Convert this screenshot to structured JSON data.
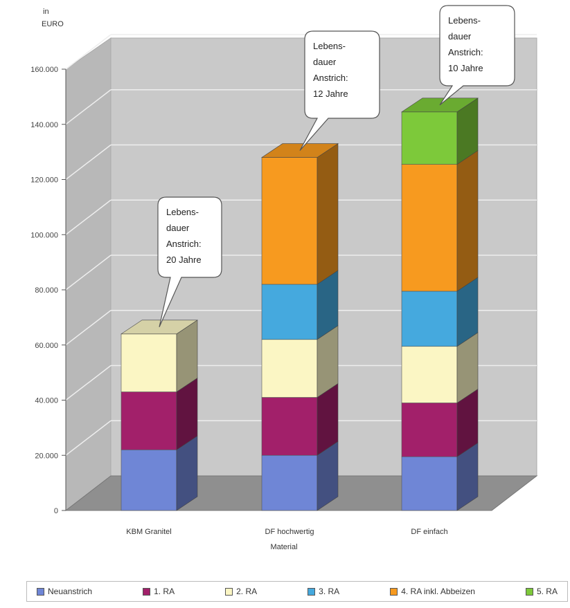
{
  "chart_data": {
    "type": "bar",
    "stacked": true,
    "three_d": true,
    "ylabel_line1": "in",
    "ylabel_line2": "EURO",
    "xlabel": "Material",
    "ylim": [
      0,
      160000
    ],
    "yticks": [
      0,
      20000,
      40000,
      60000,
      80000,
      100000,
      120000,
      140000,
      160000
    ],
    "ytick_labels": [
      "0",
      "20.000",
      "40.000",
      "60.000",
      "80.000",
      "100.000",
      "120.000",
      "140.000",
      "160.000"
    ],
    "categories": [
      "KBM Granitel",
      "DF hochwertig",
      "DF einfach"
    ],
    "series": [
      {
        "name": "Neuanstrich",
        "color": "#6f86d6",
        "values": [
          22000,
          20000,
          19500
        ]
      },
      {
        "name": "1. RA",
        "color": "#a2206a",
        "values": [
          21000,
          21000,
          19500
        ]
      },
      {
        "name": "2. RA",
        "color": "#fbf6c4",
        "values": [
          21000,
          21000,
          20500
        ]
      },
      {
        "name": "3. RA",
        "color": "#45a9de",
        "values": [
          0,
          20000,
          20000
        ]
      },
      {
        "name": "4. RA inkl. Abbeizen",
        "color": "#f79a1f",
        "values": [
          0,
          46000,
          46000
        ]
      },
      {
        "name": "5. RA",
        "color": "#7dc93a",
        "values": [
          0,
          0,
          19000
        ]
      }
    ],
    "callouts": [
      {
        "category_index": 0,
        "lines": [
          "Lebens-",
          "dauer",
          "Anstrich:",
          "20 Jahre"
        ]
      },
      {
        "category_index": 1,
        "lines": [
          "Lebens-",
          "dauer",
          "Anstrich:",
          "12 Jahre"
        ]
      },
      {
        "category_index": 2,
        "lines": [
          "Lebens-",
          "dauer",
          "Anstrich:",
          "10 Jahre"
        ]
      }
    ],
    "grid": true,
    "legend_position": "bottom"
  },
  "legend": [
    {
      "label": "Neuanstrich",
      "color": "#6f86d6"
    },
    {
      "label": "1. RA",
      "color": "#a2206a"
    },
    {
      "label": "2. RA",
      "color": "#fbf6c4"
    },
    {
      "label": "3. RA",
      "color": "#45a9de"
    },
    {
      "label": "4. RA inkl. Abbeizen",
      "color": "#f79a1f"
    },
    {
      "label": "5. RA",
      "color": "#7dc93a"
    }
  ]
}
